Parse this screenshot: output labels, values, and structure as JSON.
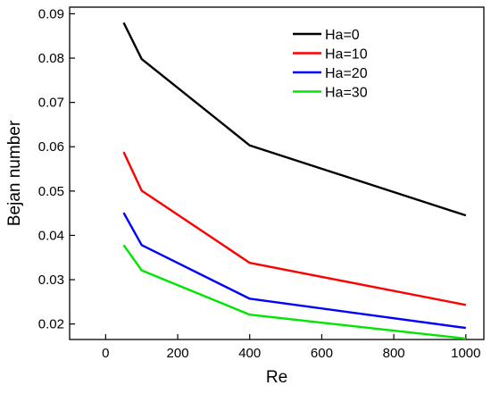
{
  "chart_data": {
    "type": "line",
    "title": "",
    "xlabel": "Re",
    "ylabel": "Bejan number",
    "x": [
      50,
      100,
      400,
      1000
    ],
    "xlim": [
      -100,
      1050
    ],
    "ylim": [
      0.0165,
      0.0915
    ],
    "xticks": [
      0,
      200,
      400,
      600,
      800,
      1000
    ],
    "yticks": [
      0.02,
      0.03,
      0.04,
      0.05,
      0.06,
      0.07,
      0.08,
      0.09
    ],
    "xtick_labels": [
      "0",
      "200",
      "400",
      "600",
      "800",
      "1000"
    ],
    "ytick_labels": [
      "0.02",
      "0.03",
      "0.04",
      "0.05",
      "0.06",
      "0.07",
      "0.08",
      "0.09"
    ],
    "grid": false,
    "legend_position": "top-right",
    "series": [
      {
        "name": "Ha=0",
        "color": "#000000",
        "values": [
          0.088,
          0.0798,
          0.0603,
          0.0445
        ]
      },
      {
        "name": "Ha=10",
        "color": "#ff0000",
        "values": [
          0.0588,
          0.0501,
          0.0338,
          0.0243
        ]
      },
      {
        "name": "Ha=20",
        "color": "#0000ff",
        "values": [
          0.0451,
          0.0378,
          0.0257,
          0.0191
        ]
      },
      {
        "name": "Ha=30",
        "color": "#00e600",
        "values": [
          0.0378,
          0.0321,
          0.0221,
          0.0167
        ]
      }
    ]
  }
}
